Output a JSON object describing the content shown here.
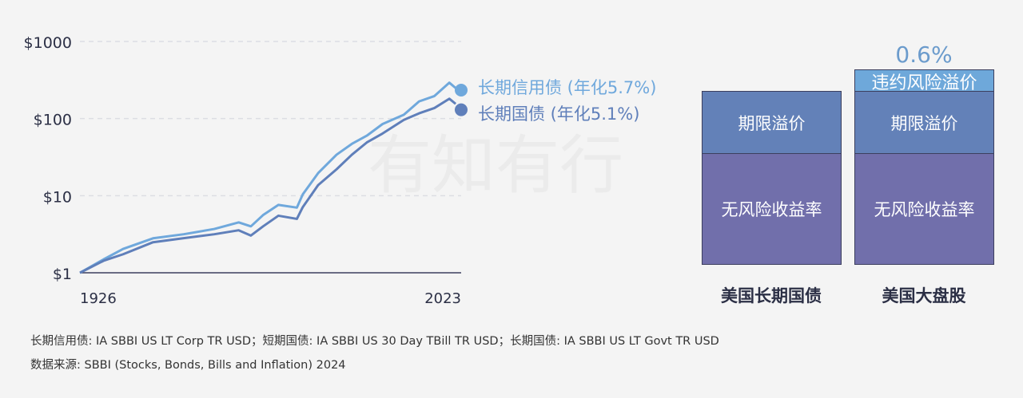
{
  "chart_data": [
    {
      "type": "line",
      "title": "",
      "yscale": "log",
      "ylim": [
        1,
        1000
      ],
      "xlim": [
        1926,
        2023
      ],
      "y_ticks": [
        {
          "v": 1,
          "label": "$1"
        },
        {
          "v": 10,
          "label": "$10"
        },
        {
          "v": 100,
          "label": "$100"
        },
        {
          "v": 1000,
          "label": "$1000"
        }
      ],
      "x_ticks": [
        {
          "v": 1926,
          "label": "1926"
        },
        {
          "v": 2023,
          "label": "2023"
        }
      ],
      "grid": "horizontal dashed",
      "legend_placement": "right-end",
      "series": [
        {
          "name": "长期信用债 (年化5.7%)",
          "color": "#6fa8dc",
          "x": [
            1926,
            1932,
            1937,
            1944.6,
            1952.4,
            1960.2,
            1966.4,
            1969.5,
            1972.6,
            1976.5,
            1981.2,
            1982.7,
            1986.6,
            1991.3,
            1995.2,
            1999,
            2003,
            2008.4,
            2012.3,
            2016.2,
            2020,
            2021.6,
            2023
          ],
          "y": [
            1,
            1.49,
            2.04,
            2.8,
            3.16,
            3.7,
            4.5,
            4.0,
            5.6,
            7.6,
            7.0,
            10.4,
            19.6,
            34,
            47,
            60,
            85,
            112,
            167,
            196,
            292,
            249,
            234
          ]
        },
        {
          "name": "长期国债 (年化5.1%)",
          "color": "#5f7fba",
          "x": [
            1926,
            1932,
            1937,
            1944.6,
            1952.4,
            1960.2,
            1966.4,
            1969.5,
            1972.6,
            1976.5,
            1981.2,
            1982.7,
            1986.6,
            1991.3,
            1995.2,
            1999,
            2003,
            2008.4,
            2012.3,
            2016.2,
            2020,
            2021.6,
            2023
          ],
          "y": [
            1,
            1.43,
            1.74,
            2.49,
            2.81,
            3.16,
            3.56,
            3.04,
            4.0,
            5.5,
            5.0,
            7.1,
            13.7,
            22,
            34,
            49,
            64,
            96,
            117,
            137,
            181,
            155,
            130
          ]
        }
      ]
    },
    {
      "type": "bar",
      "stacked": true,
      "categories": [
        "美国长期国债",
        "美国大盘股"
      ],
      "segments": [
        {
          "name": "无风险收益率",
          "color": "#716fab"
        },
        {
          "name": "期限溢价",
          "color": "#6381b8"
        },
        {
          "name": "违约风险溢价",
          "color": "#6ea8da"
        }
      ],
      "annotation": "0.6%"
    }
  ],
  "watermark": "有知有行",
  "notes": [
    "长期信用债: IA SBBI US LT Corp TR USD；短期国债: IA SBBI US 30 Day TBill TR USD；长期国债:  IA SBBI US LT Govt TR USD",
    "数据来源: SBBI (Stocks, Bonds, Bills and Inflation) 2024"
  ]
}
